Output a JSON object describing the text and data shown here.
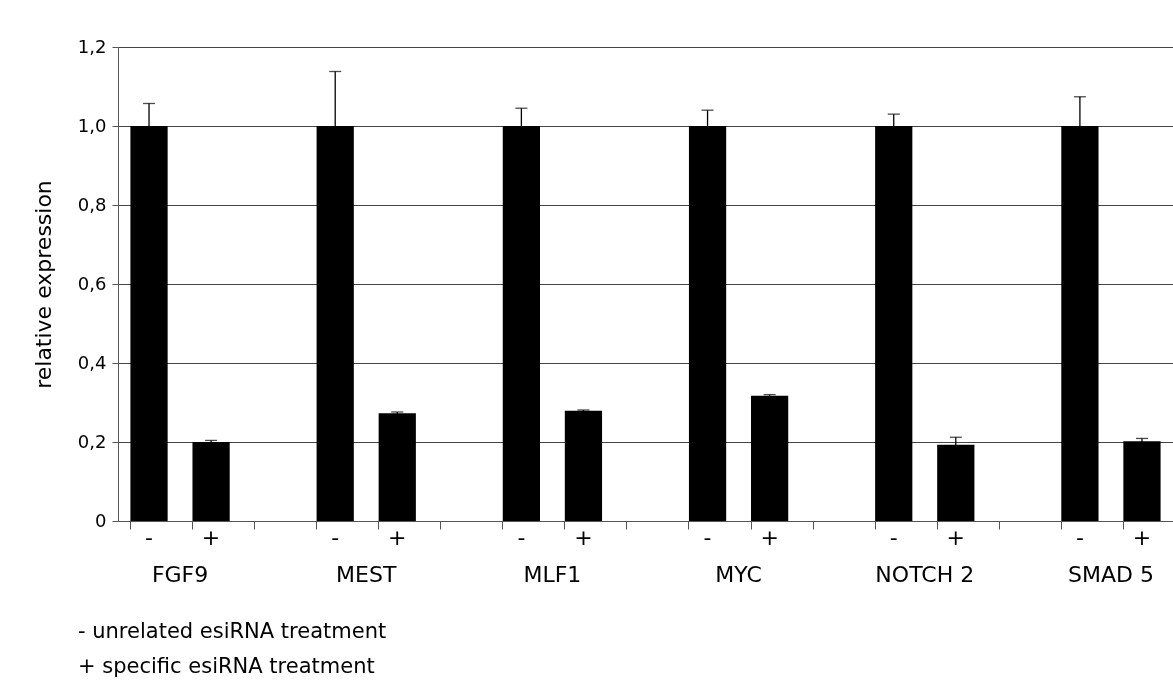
{
  "chart_data": {
    "type": "bar",
    "ylabel": "relative expression",
    "categories": [
      "-",
      "+",
      null,
      "-",
      "+",
      null,
      "-",
      "+",
      null,
      "-",
      "+",
      null,
      "-",
      "+",
      null,
      "-",
      "+"
    ],
    "values": [
      1.0,
      0.2,
      null,
      1.0,
      0.273,
      null,
      1.0,
      0.279,
      null,
      1.0,
      0.317,
      null,
      1.0,
      0.193,
      null,
      1.0,
      0.202
    ],
    "errors": [
      0.057,
      0.004,
      null,
      0.138,
      0.003,
      null,
      0.045,
      0.002,
      null,
      0.04,
      0.003,
      null,
      0.03,
      0.019,
      null,
      0.074,
      0.007
    ],
    "color": "#000000",
    "ylim": [
      0,
      1.2
    ],
    "yticks": [
      0,
      {
        "value": 0.2,
        "label": "0,2"
      },
      {
        "value": 0.4,
        "label": "0,4"
      },
      {
        "value": 0.6,
        "label": "0,6"
      },
      {
        "value": 0.8,
        "label": "0,8"
      },
      {
        "value": 1.0,
        "label": "1,0"
      },
      {
        "value": 1.2,
        "label": "1,2"
      }
    ],
    "grid": "y",
    "annotations": [
      "FGF9",
      "MEST",
      "MLF1",
      "MYC",
      "NOTCH 2",
      "SMAD 5",
      "-  unrelated esiRNA treatment",
      "+ specific esiRNA treatment"
    ]
  }
}
